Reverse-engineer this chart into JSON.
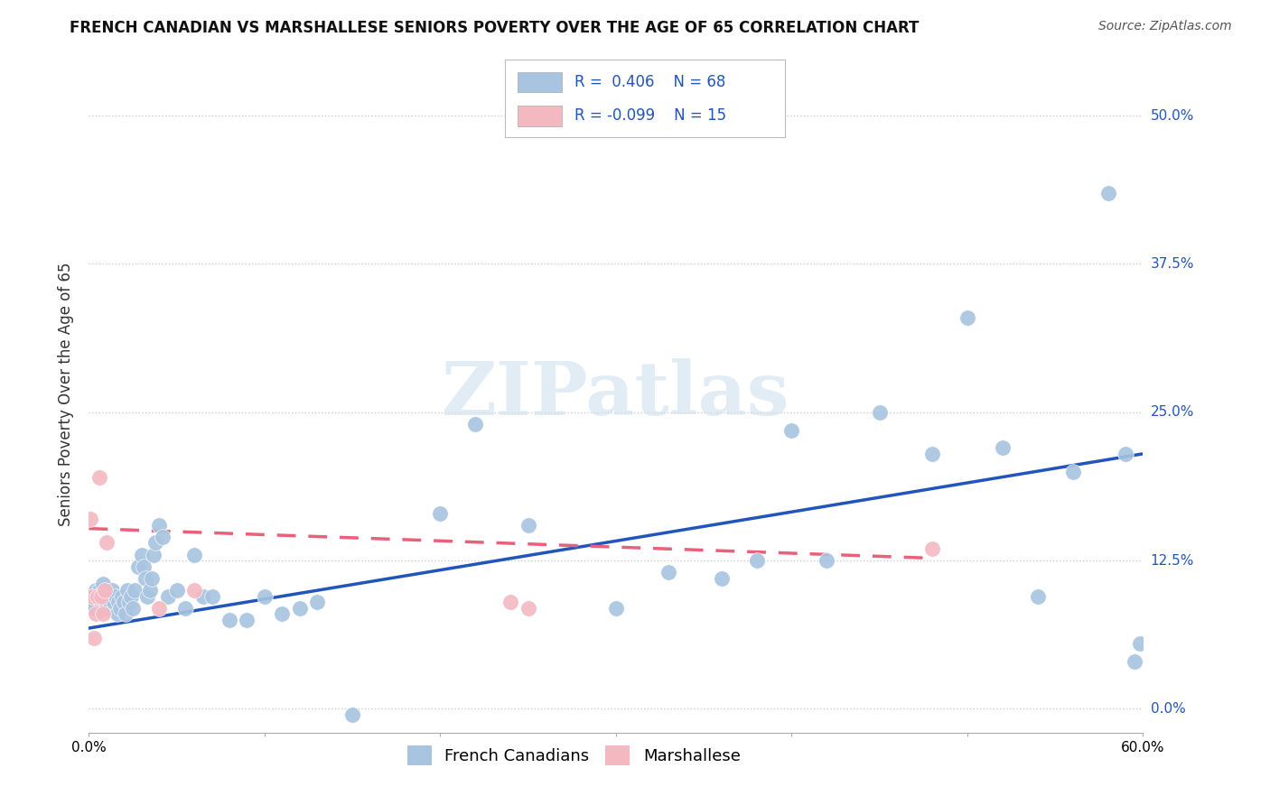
{
  "title": "FRENCH CANADIAN VS MARSHALLESE SENIORS POVERTY OVER THE AGE OF 65 CORRELATION CHART",
  "source": "Source: ZipAtlas.com",
  "ylabel": "Seniors Poverty Over the Age of 65",
  "xlim": [
    0.0,
    0.6
  ],
  "ylim": [
    -0.02,
    0.55
  ],
  "yticks": [
    0.0,
    0.125,
    0.25,
    0.375,
    0.5
  ],
  "ytick_labels": [
    "0.0%",
    "12.5%",
    "25.0%",
    "37.5%",
    "50.0%"
  ],
  "xticks": [
    0.0,
    0.1,
    0.2,
    0.3,
    0.4,
    0.5,
    0.6
  ],
  "xtick_labels": [
    "0.0%",
    "",
    "",
    "",
    "",
    "",
    "60.0%"
  ],
  "french_canadian_color": "#a8c4e0",
  "marshallese_color": "#f4b8c1",
  "french_canadian_line_color": "#2255bb",
  "marshallese_line_color": "#e8607a",
  "R_french": 0.406,
  "N_french": 68,
  "R_marshallese": -0.099,
  "N_marshallese": 15,
  "fc_trend_x0": 0.0,
  "fc_trend_y0": 0.068,
  "fc_trend_x1": 0.6,
  "fc_trend_y1": 0.215,
  "ma_trend_x0": 0.0,
  "ma_trend_y0": 0.152,
  "ma_trend_x1": 0.48,
  "ma_trend_y1": 0.127,
  "french_canadian_x": [
    0.002,
    0.003,
    0.004,
    0.005,
    0.006,
    0.007,
    0.008,
    0.009,
    0.01,
    0.011,
    0.012,
    0.013,
    0.014,
    0.015,
    0.016,
    0.017,
    0.018,
    0.019,
    0.02,
    0.021,
    0.022,
    0.023,
    0.024,
    0.025,
    0.026,
    0.028,
    0.03,
    0.031,
    0.032,
    0.033,
    0.035,
    0.036,
    0.037,
    0.038,
    0.04,
    0.042,
    0.045,
    0.05,
    0.055,
    0.06,
    0.065,
    0.07,
    0.08,
    0.09,
    0.1,
    0.11,
    0.12,
    0.13,
    0.15,
    0.2,
    0.22,
    0.25,
    0.3,
    0.33,
    0.36,
    0.38,
    0.4,
    0.42,
    0.45,
    0.48,
    0.5,
    0.52,
    0.54,
    0.56,
    0.58,
    0.59,
    0.595,
    0.598
  ],
  "french_canadian_y": [
    0.09,
    0.085,
    0.1,
    0.095,
    0.1,
    0.09,
    0.105,
    0.095,
    0.085,
    0.095,
    0.09,
    0.1,
    0.09,
    0.095,
    0.08,
    0.09,
    0.085,
    0.095,
    0.09,
    0.08,
    0.1,
    0.09,
    0.095,
    0.085,
    0.1,
    0.12,
    0.13,
    0.12,
    0.11,
    0.095,
    0.1,
    0.11,
    0.13,
    0.14,
    0.155,
    0.145,
    0.095,
    0.1,
    0.085,
    0.13,
    0.095,
    0.095,
    0.075,
    0.075,
    0.095,
    0.08,
    0.085,
    0.09,
    -0.005,
    0.165,
    0.24,
    0.155,
    0.085,
    0.115,
    0.11,
    0.125,
    0.235,
    0.125,
    0.25,
    0.215,
    0.33,
    0.22,
    0.095,
    0.2,
    0.435,
    0.215,
    0.04,
    0.055
  ],
  "marshallese_x": [
    0.001,
    0.002,
    0.003,
    0.004,
    0.005,
    0.006,
    0.007,
    0.008,
    0.009,
    0.01,
    0.04,
    0.06,
    0.24,
    0.25,
    0.48
  ],
  "marshallese_y": [
    0.16,
    0.095,
    0.06,
    0.08,
    0.095,
    0.195,
    0.095,
    0.08,
    0.1,
    0.14,
    0.085,
    0.1,
    0.09,
    0.085,
    0.135
  ],
  "watermark_text": "ZIPatlas",
  "background_color": "#ffffff",
  "grid_color": "#cccccc",
  "title_fontsize": 12,
  "source_fontsize": 10,
  "ylabel_fontsize": 12,
  "tick_fontsize": 11,
  "legend_fontsize": 12,
  "watermark_fontsize": 60,
  "watermark_color": "#d0e0ef",
  "watermark_alpha": 0.6
}
